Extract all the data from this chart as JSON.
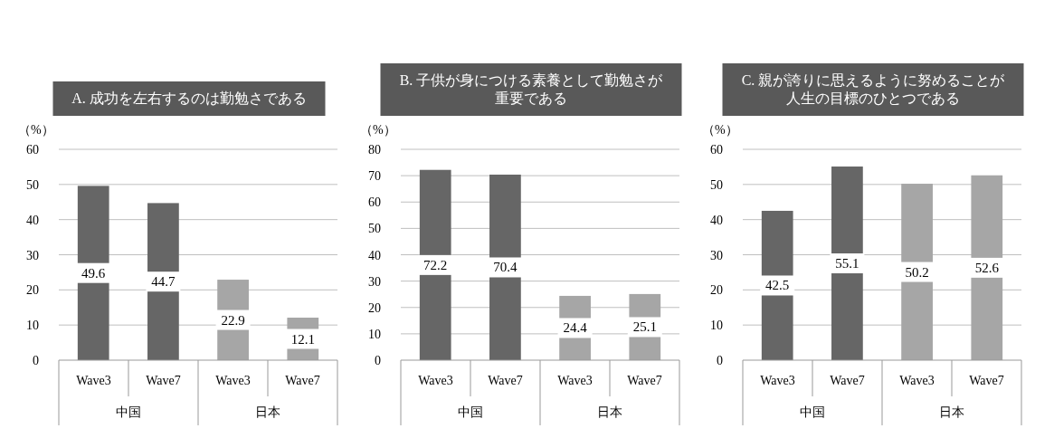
{
  "chart_data": [
    {
      "type": "bar",
      "title": "A. 成功を左右するのは勤勉さである",
      "ylabel": "（%）",
      "categories": [
        "Wave3",
        "Wave7",
        "Wave3",
        "Wave7"
      ],
      "values": [
        49.6,
        44.7,
        22.9,
        12.1
      ],
      "colors": [
        "#666666",
        "#666666",
        "#a6a6a6",
        "#a6a6a6"
      ],
      "annotations": [
        "中国",
        "日本"
      ],
      "ylim": [
        0,
        60
      ],
      "yticks": [
        0,
        10,
        20,
        30,
        40,
        50,
        60
      ],
      "grid": "y",
      "data_labels": true
    },
    {
      "type": "bar",
      "title": "B. 子供が身につける素養として勤勉さが重要である",
      "ylabel": "（%）",
      "categories": [
        "Wave3",
        "Wave7",
        "Wave3",
        "Wave7"
      ],
      "values": [
        72.2,
        70.4,
        24.4,
        25.1
      ],
      "colors": [
        "#666666",
        "#666666",
        "#a6a6a6",
        "#a6a6a6"
      ],
      "annotations": [
        "中国",
        "日本"
      ],
      "ylim": [
        0,
        80
      ],
      "yticks": [
        0,
        10,
        20,
        30,
        40,
        50,
        60,
        70,
        80
      ],
      "grid": "y",
      "data_labels": true
    },
    {
      "type": "bar",
      "title": "C. 親が誇りに思えるように努めることが人生の目標のひとつである",
      "ylabel": "（%）",
      "categories": [
        "Wave3",
        "Wave7",
        "Wave3",
        "Wave7"
      ],
      "values": [
        42.5,
        55.1,
        50.2,
        52.6
      ],
      "colors": [
        "#666666",
        "#666666",
        "#a6a6a6",
        "#a6a6a6"
      ],
      "annotations": [
        "中国",
        "日本"
      ],
      "ylim": [
        0,
        60
      ],
      "yticks": [
        0,
        10,
        20,
        30,
        40,
        50,
        60
      ],
      "grid": "y",
      "data_labels": true
    }
  ]
}
